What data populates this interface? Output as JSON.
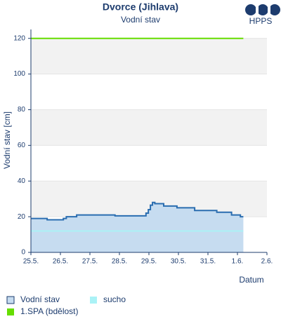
{
  "chart_data": {
    "type": "line",
    "title": "Dvorce (Jihlava)",
    "subtitle": "Vodní stav",
    "logo": "HPPS",
    "y_label": "Vodní stav [cm]",
    "x_label": "Datum",
    "xlim": [
      0,
      8
    ],
    "ylim": [
      0,
      125
    ],
    "xticks": [
      {
        "value": 0,
        "label": "25.5."
      },
      {
        "value": 1,
        "label": "26.5."
      },
      {
        "value": 2,
        "label": "27.5."
      },
      {
        "value": 3,
        "label": "28.5."
      },
      {
        "value": 4,
        "label": "29.5."
      },
      {
        "value": 5,
        "label": "30.5."
      },
      {
        "value": 6,
        "label": "31.5."
      },
      {
        "value": 7,
        "label": "1.6."
      },
      {
        "value": 8,
        "label": "2.6."
      }
    ],
    "yticks": [
      0,
      20,
      40,
      60,
      80,
      100,
      120
    ],
    "series": [
      {
        "name": "Vodní stav",
        "color": "#2a6db0",
        "fill": "#c6dcf0",
        "step": true,
        "x": [
          0,
          0.55,
          1.1,
          1.2,
          1.55,
          2.85,
          3.9,
          3.98,
          4.05,
          4.12,
          4.2,
          4.5,
          4.95,
          5.55,
          6.3,
          6.8,
          7.1,
          7.2
        ],
        "values": [
          19,
          18.3,
          19,
          20,
          21,
          20.5,
          22,
          24,
          26.5,
          28,
          27.3,
          26,
          25,
          23.5,
          22.5,
          21,
          20,
          20
        ]
      },
      {
        "name": "sucho",
        "color": "#aaf2f6",
        "x": [
          0,
          7.2
        ],
        "values": [
          12,
          12
        ]
      },
      {
        "name": "1.SPA (bdělost)",
        "color": "#66dd00",
        "x": [
          0,
          7.2
        ],
        "values": [
          120,
          120
        ]
      }
    ]
  }
}
